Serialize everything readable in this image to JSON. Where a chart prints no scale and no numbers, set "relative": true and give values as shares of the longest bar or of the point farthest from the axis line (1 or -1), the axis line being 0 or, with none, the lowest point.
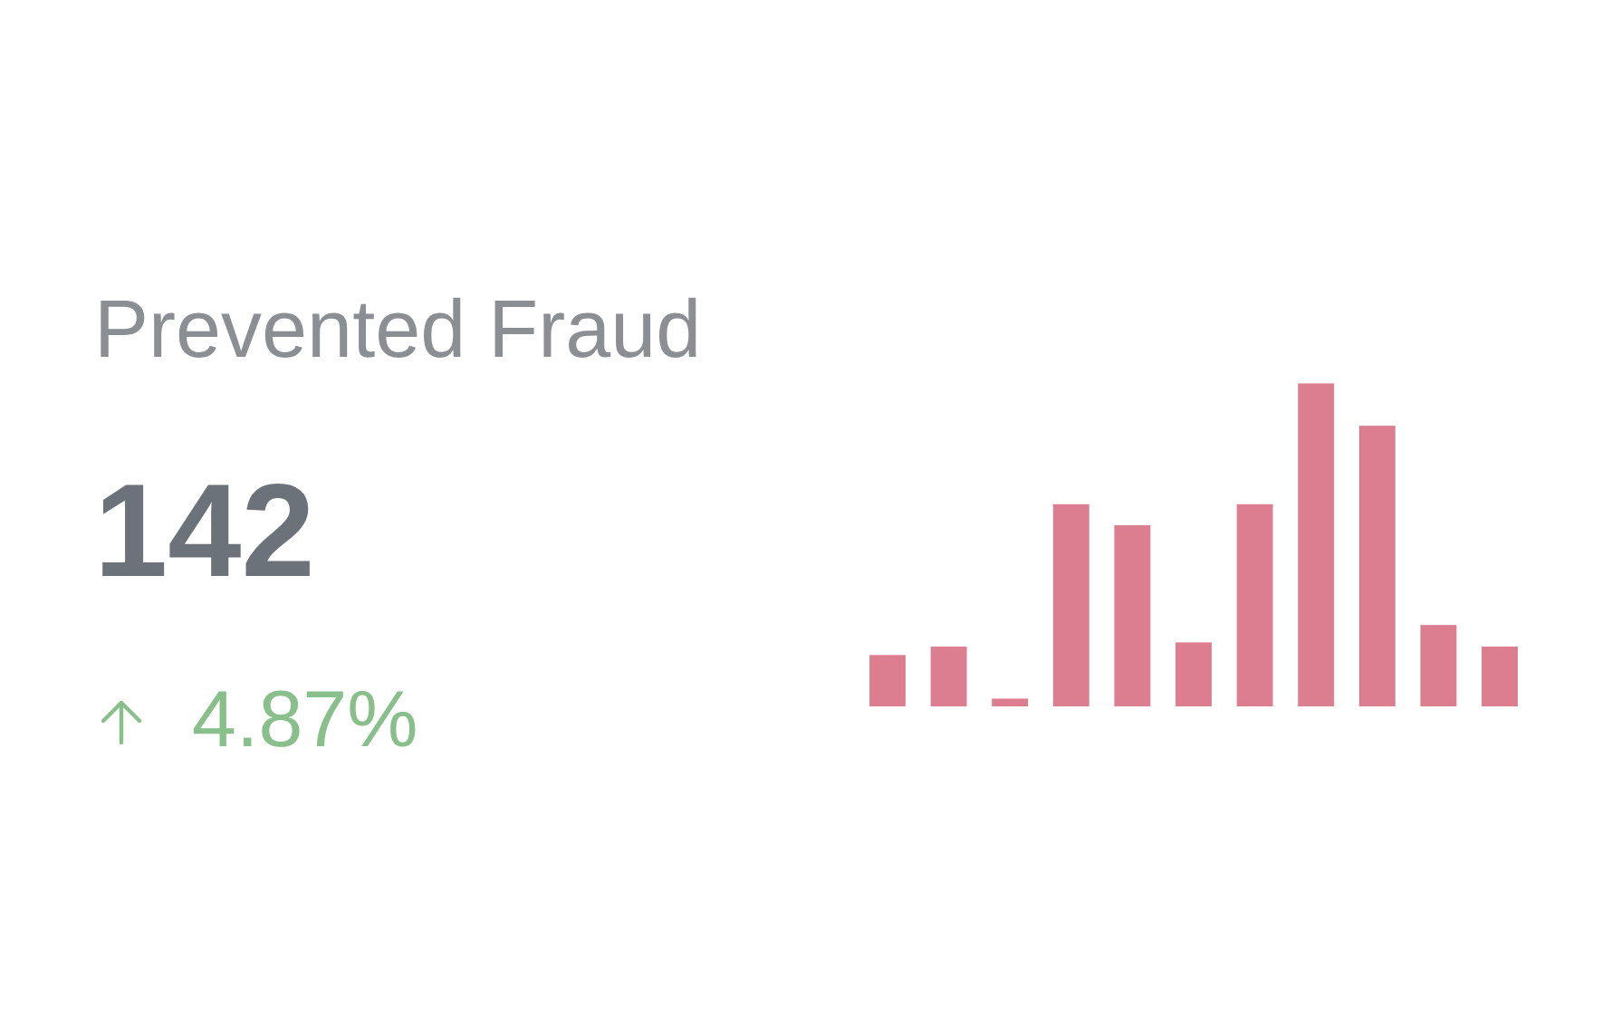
{
  "chart_data": {
    "type": "bar",
    "title": "Prevented Fraud",
    "annotations": [
      "142",
      "4.87%"
    ],
    "categories": [
      null,
      null,
      null,
      null,
      null,
      null,
      null,
      null,
      null,
      null,
      null
    ],
    "values": [
      0.159,
      0.185,
      0.024,
      0.626,
      0.561,
      0.198,
      0.626,
      1,
      0.869,
      0.252,
      0.185
    ],
    "color": "#dc7e8f",
    "relative": true
  }
}
